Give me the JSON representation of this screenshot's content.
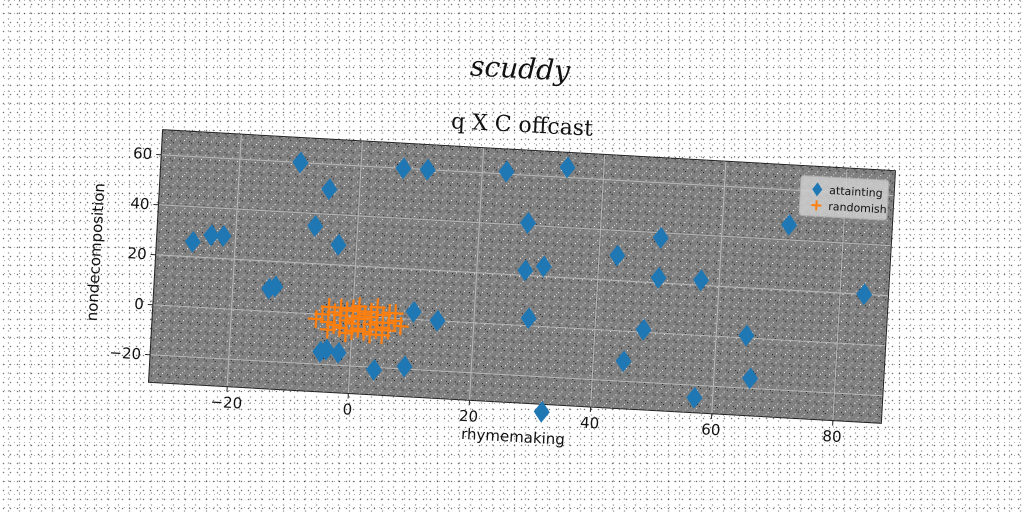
{
  "page": {
    "suptitle": "scuddy"
  },
  "chart_data": {
    "type": "scatter",
    "title": "q X C offcast",
    "xlabel": "rhymemaking",
    "ylabel": "nondecomposition",
    "xlim": [
      -33,
      88
    ],
    "ylim": [
      -31,
      70
    ],
    "xticks": [
      -20,
      0,
      20,
      40,
      60,
      80
    ],
    "yticks": [
      -20,
      0,
      20,
      40,
      60
    ],
    "grid": true,
    "legend": "top-right",
    "series": [
      {
        "name": "attainting",
        "marker": "diamond",
        "color": "#1f77b4",
        "points": [
          [
            -27,
            26
          ],
          [
            -24,
            29
          ],
          [
            -22,
            29
          ],
          [
            -14,
            9
          ],
          [
            -13,
            10
          ],
          [
            -10,
            60
          ],
          [
            -7,
            35
          ],
          [
            -5,
            50
          ],
          [
            -5,
            -15
          ],
          [
            -4,
            -14
          ],
          [
            -3,
            28
          ],
          [
            -2,
            -15
          ],
          [
            4,
            -21
          ],
          [
            7,
            60
          ],
          [
            9,
            -19
          ],
          [
            10,
            3
          ],
          [
            11,
            60
          ],
          [
            14,
            0
          ],
          [
            24,
            61
          ],
          [
            28,
            41
          ],
          [
            28,
            22
          ],
          [
            29,
            3
          ],
          [
            31,
            24
          ],
          [
            32,
            -34
          ],
          [
            34,
            64
          ],
          [
            43,
            30
          ],
          [
            45,
            -12
          ],
          [
            48,
            1
          ],
          [
            50,
            38
          ],
          [
            50,
            22
          ],
          [
            57,
            22
          ],
          [
            57,
            -25
          ],
          [
            65,
            1
          ],
          [
            66,
            -16
          ],
          [
            71,
            46
          ],
          [
            84,
            20
          ]
        ]
      },
      {
        "name": "randomish",
        "marker": "plus",
        "color": "#ff7f0e",
        "points": [
          [
            -5,
            0
          ],
          [
            -4,
            -3
          ],
          [
            -3,
            1
          ],
          [
            -2,
            -5
          ],
          [
            -1,
            2
          ],
          [
            0,
            -3
          ],
          [
            1,
            0
          ],
          [
            2,
            -6
          ],
          [
            3,
            2
          ],
          [
            4,
            -2
          ],
          [
            5,
            1
          ],
          [
            6,
            -5
          ],
          [
            7,
            -1
          ],
          [
            -4,
            3
          ],
          [
            -1,
            -7
          ],
          [
            1,
            4
          ],
          [
            3,
            -7
          ],
          [
            5,
            -4
          ],
          [
            2,
            1
          ],
          [
            0,
            -1
          ],
          [
            -2,
            0
          ],
          [
            4,
            4
          ],
          [
            6,
            2
          ],
          [
            -3,
            -4
          ],
          [
            1,
            -5
          ],
          [
            3,
            -3
          ],
          [
            2,
            -1
          ],
          [
            -1,
            -2
          ],
          [
            0,
            3
          ],
          [
            5,
            -7
          ],
          [
            8,
            -3
          ],
          [
            -6,
            -2
          ],
          [
            7,
            2
          ],
          [
            -2,
            3
          ],
          [
            4,
            -5
          ],
          [
            1,
            2
          ],
          [
            3,
            0
          ],
          [
            -4,
            -6
          ],
          [
            6,
            -2
          ],
          [
            0,
            -6
          ]
        ]
      }
    ]
  }
}
